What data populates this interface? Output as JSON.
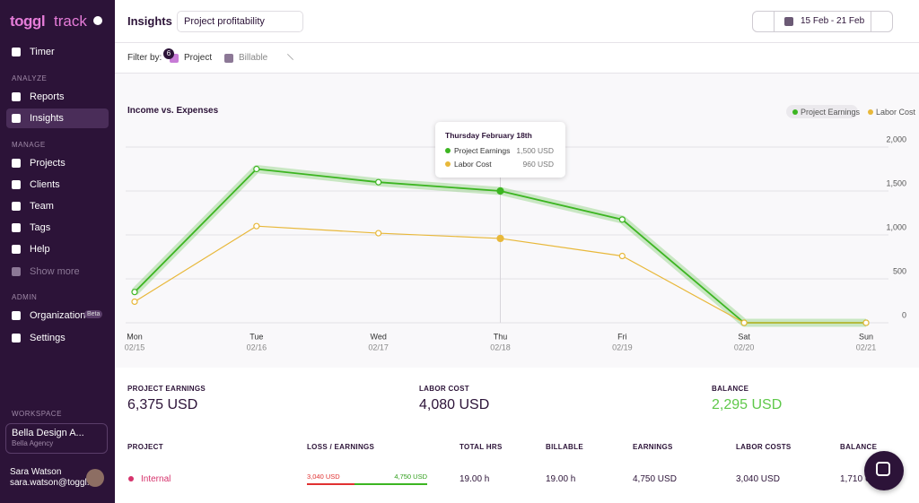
{
  "sidebar": {
    "logo": [
      "toggl",
      "track"
    ],
    "timer": "Timer",
    "sections": [
      {
        "label": "ANALYZE",
        "items": [
          "Reports",
          "Insights"
        ]
      },
      {
        "label": "MANAGE",
        "items": [
          "Projects",
          "Clients",
          "Team",
          "Tags",
          "Help",
          "Show more"
        ]
      },
      {
        "label": "ADMIN",
        "items": [
          "Organization",
          "Settings"
        ]
      }
    ],
    "badge": "Beta",
    "workspace": {
      "label": "WORKSPACE",
      "name": "Bella Design A...",
      "org": "Bella Agency"
    },
    "user": {
      "name": "Sara Watson",
      "email": "sara.watson@toggl..."
    }
  },
  "header": {
    "title": "Insights",
    "report": "Project profitability",
    "date_range": "15 Feb - 21 Feb"
  },
  "filter": {
    "label": "Filter by:",
    "count": 6,
    "items": [
      "Project",
      "Billable"
    ]
  },
  "chart_data": {
    "type": "line",
    "title": "Income vs. Expenses",
    "categories": [
      "Mon",
      "Tue",
      "Wed",
      "Thu",
      "Fri",
      "Sat",
      "Sun"
    ],
    "dates": [
      "02/15",
      "02/16",
      "02/17",
      "02/18",
      "02/19",
      "02/20",
      "02/21"
    ],
    "series": [
      {
        "name": "Project Earnings",
        "color": "#3cb521",
        "values": [
          350,
          1750,
          1600,
          1500,
          1175,
          0,
          0
        ]
      },
      {
        "name": "Labor Cost",
        "color": "#e8b83a",
        "values": [
          240,
          1100,
          1020,
          960,
          760,
          0,
          0
        ]
      }
    ],
    "ylim": [
      0,
      2000
    ],
    "yticks": [
      0,
      500,
      {
        "value": 1000,
        "label": "1,000"
      },
      {
        "value": 1500,
        "label": "1,500"
      },
      {
        "value": 2000,
        "label": "2,000"
      }
    ],
    "grid": true,
    "legend": "top-right",
    "tooltip": {
      "index": 3,
      "title": "Thursday February 18th",
      "value_labels": [
        "1,500 USD",
        "960 USD"
      ]
    }
  },
  "summary": [
    {
      "label": "PROJECT EARNINGS",
      "value": "6,375 USD"
    },
    {
      "label": "LABOR COST",
      "value": "4,080 USD"
    },
    {
      "label": "BALANCE",
      "value": "2,295 USD"
    }
  ],
  "table": {
    "columns": [
      "PROJECT",
      "LOSS / EARNINGS",
      "TOTAL HRS",
      "BILLABLE",
      "EARNINGS",
      "LABOR COSTS",
      "BALANCE"
    ],
    "rows": [
      [
        "Internal",
        "3,040 USD",
        "4,750 USD",
        "19.00 h",
        "19.00 h",
        "4,750 USD",
        "3,040 USD",
        "1,710 USD"
      ]
    ]
  }
}
